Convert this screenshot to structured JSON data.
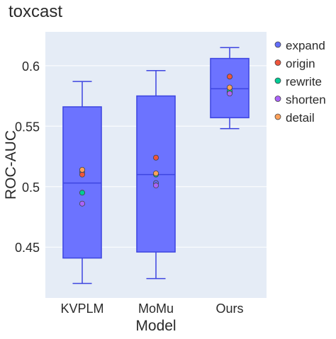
{
  "chart_data": {
    "type": "box",
    "title": "toxcast",
    "xlabel": "Model",
    "ylabel": "ROC-AUC",
    "categories": [
      "KVPLM",
      "MoMu",
      "Ours"
    ],
    "ylim": [
      0.408,
      0.628
    ],
    "yticks": [
      0.45,
      0.5,
      0.55,
      0.6
    ],
    "ytick_labels": [
      "0.45",
      "0.5",
      "0.55",
      "0.6"
    ],
    "grid": true,
    "legend_position": "right",
    "boxes": [
      {
        "category": "KVPLM",
        "min": 0.42,
        "q1": 0.441,
        "median": 0.503,
        "q3": 0.566,
        "max": 0.587
      },
      {
        "category": "MoMu",
        "min": 0.424,
        "q1": 0.446,
        "median": 0.51,
        "q3": 0.575,
        "max": 0.596
      },
      {
        "category": "Ours",
        "min": 0.548,
        "q1": 0.557,
        "median": 0.581,
        "q3": 0.606,
        "max": 0.615
      }
    ],
    "series": [
      {
        "name": "expand",
        "color": "#636efa",
        "values": [
          0.512,
          0.503,
          0.578
        ]
      },
      {
        "name": "origin",
        "color": "#ef553b",
        "values": [
          0.51,
          0.524,
          0.591
        ]
      },
      {
        "name": "rewrite",
        "color": "#00cc96",
        "values": [
          0.495,
          0.51,
          0.579
        ]
      },
      {
        "name": "shorten",
        "color": "#ab63fa",
        "values": [
          0.486,
          0.501,
          0.577
        ]
      },
      {
        "name": "detail",
        "color": "#ffa15a",
        "values": [
          0.514,
          0.511,
          0.582
        ]
      }
    ],
    "colors": {
      "box_fill": "#6c73ff",
      "box_line": "#3d45e0",
      "plot_bg": "#e5ecf6",
      "grid": "#ffffff"
    }
  }
}
